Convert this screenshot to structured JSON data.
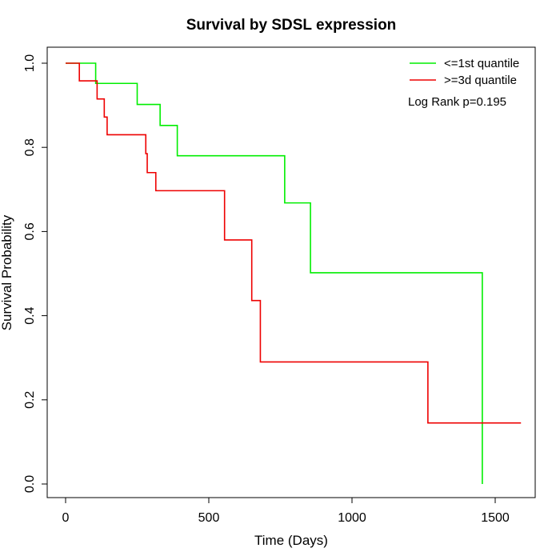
{
  "chart_data": {
    "type": "line",
    "step": true,
    "title": "Survival by SDSL expression",
    "xlabel": "Time (Days)",
    "ylabel": "Survival Probability",
    "xlim": [
      0,
      1650
    ],
    "ylim": [
      0,
      1.0
    ],
    "xticks": [
      0,
      500,
      1000,
      1500
    ],
    "yticks": [
      0.0,
      0.2,
      0.4,
      0.6,
      0.8,
      1.0
    ],
    "xtick_labels": [
      "0",
      "500",
      "1000",
      "1500"
    ],
    "ytick_labels": [
      "0.0",
      "0.2",
      "0.4",
      "0.6",
      "0.8",
      "1.0"
    ],
    "grid": false,
    "legend_position": "top-right",
    "annotation": "Log Rank p=0.195",
    "series": [
      {
        "name": "<=1st quantile",
        "color": "#00ee00",
        "x": [
          0,
          105,
          250,
          330,
          390,
          765,
          855,
          1455,
          1455
        ],
        "y": [
          1.0,
          0.952,
          0.902,
          0.852,
          0.78,
          0.668,
          0.502,
          0.502,
          0.0
        ]
      },
      {
        "name": ">=3d quantile",
        "color": "#ee0000",
        "x": [
          0,
          48,
          110,
          135,
          145,
          280,
          285,
          315,
          555,
          650,
          680,
          1265,
          1590
        ],
        "y": [
          1.0,
          0.958,
          0.915,
          0.872,
          0.83,
          0.785,
          0.74,
          0.697,
          0.58,
          0.436,
          0.29,
          0.145,
          0.145
        ]
      }
    ]
  }
}
